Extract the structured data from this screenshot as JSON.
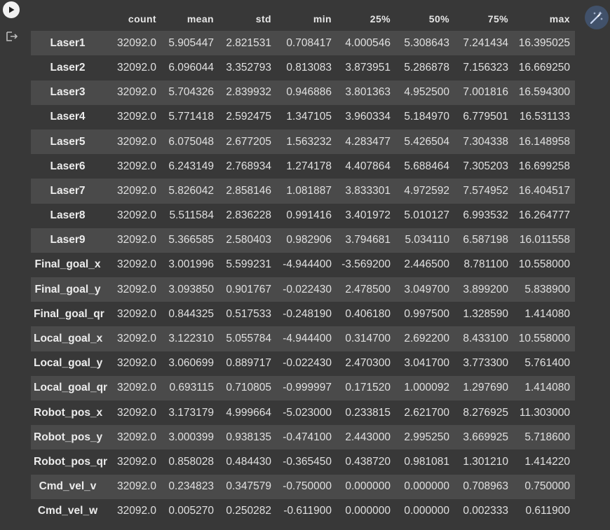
{
  "toolbar": {
    "run_icon": "play-icon",
    "output_icon": "output-redirect-icon",
    "magic_icon": "magic-wand-icon",
    "accent_color": "#41516a"
  },
  "table": {
    "columns": [
      "count",
      "mean",
      "std",
      "min",
      "25%",
      "50%",
      "75%",
      "max"
    ],
    "rows": [
      {
        "label": "Laser1",
        "cells": [
          "32092.0",
          "5.905447",
          "2.821531",
          "0.708417",
          "4.000546",
          "5.308643",
          "7.241434",
          "16.395025"
        ]
      },
      {
        "label": "Laser2",
        "cells": [
          "32092.0",
          "6.096044",
          "3.352793",
          "0.813083",
          "3.873951",
          "5.286878",
          "7.156323",
          "16.669250"
        ]
      },
      {
        "label": "Laser3",
        "cells": [
          "32092.0",
          "5.704326",
          "2.839932",
          "0.946886",
          "3.801363",
          "4.952500",
          "7.001816",
          "16.594300"
        ]
      },
      {
        "label": "Laser4",
        "cells": [
          "32092.0",
          "5.771418",
          "2.592475",
          "1.347105",
          "3.960334",
          "5.184970",
          "6.779501",
          "16.531133"
        ]
      },
      {
        "label": "Laser5",
        "cells": [
          "32092.0",
          "6.075048",
          "2.677205",
          "1.563232",
          "4.283477",
          "5.426504",
          "7.304338",
          "16.148958"
        ]
      },
      {
        "label": "Laser6",
        "cells": [
          "32092.0",
          "6.243149",
          "2.768934",
          "1.274178",
          "4.407864",
          "5.688464",
          "7.305203",
          "16.699258"
        ]
      },
      {
        "label": "Laser7",
        "cells": [
          "32092.0",
          "5.826042",
          "2.858146",
          "1.081887",
          "3.833301",
          "4.972592",
          "7.574952",
          "16.404517"
        ]
      },
      {
        "label": "Laser8",
        "cells": [
          "32092.0",
          "5.511584",
          "2.836228",
          "0.991416",
          "3.401972",
          "5.010127",
          "6.993532",
          "16.264777"
        ]
      },
      {
        "label": "Laser9",
        "cells": [
          "32092.0",
          "5.366585",
          "2.580403",
          "0.982906",
          "3.794681",
          "5.034110",
          "6.587198",
          "16.011558"
        ]
      },
      {
        "label": "Final_goal_x",
        "cells": [
          "32092.0",
          "3.001996",
          "5.599231",
          "-4.944400",
          "-3.569200",
          "2.446500",
          "8.781100",
          "10.558000"
        ]
      },
      {
        "label": "Final_goal_y",
        "cells": [
          "32092.0",
          "3.093850",
          "0.901767",
          "-0.022430",
          "2.478500",
          "3.049700",
          "3.899200",
          "5.838900"
        ]
      },
      {
        "label": "Final_goal_qr",
        "cells": [
          "32092.0",
          "0.844325",
          "0.517533",
          "-0.248190",
          "0.406180",
          "0.997500",
          "1.328590",
          "1.414080"
        ]
      },
      {
        "label": "Local_goal_x",
        "cells": [
          "32092.0",
          "3.122310",
          "5.055784",
          "-4.944400",
          "0.314700",
          "2.692200",
          "8.433100",
          "10.558000"
        ]
      },
      {
        "label": "Local_goal_y",
        "cells": [
          "32092.0",
          "3.060699",
          "0.889717",
          "-0.022430",
          "2.470300",
          "3.041700",
          "3.773300",
          "5.761400"
        ]
      },
      {
        "label": "Local_goal_qr",
        "cells": [
          "32092.0",
          "0.693115",
          "0.710805",
          "-0.999997",
          "0.171520",
          "1.000092",
          "1.297690",
          "1.414080"
        ]
      },
      {
        "label": "Robot_pos_x",
        "cells": [
          "32092.0",
          "3.173179",
          "4.999664",
          "-5.023000",
          "0.233815",
          "2.621700",
          "8.276925",
          "11.303000"
        ]
      },
      {
        "label": "Robot_pos_y",
        "cells": [
          "32092.0",
          "3.000399",
          "0.938135",
          "-0.474100",
          "2.443000",
          "2.995250",
          "3.669925",
          "5.718600"
        ]
      },
      {
        "label": "Robot_pos_qr",
        "cells": [
          "32092.0",
          "0.858028",
          "0.484430",
          "-0.365450",
          "0.438720",
          "0.981081",
          "1.301210",
          "1.414220"
        ]
      },
      {
        "label": "Cmd_vel_v",
        "cells": [
          "32092.0",
          "0.234823",
          "0.347579",
          "-0.750000",
          "0.000000",
          "0.000000",
          "0.708963",
          "0.750000"
        ]
      },
      {
        "label": "Cmd_vel_w",
        "cells": [
          "32092.0",
          "0.005270",
          "0.250282",
          "-0.611900",
          "0.000000",
          "0.000000",
          "0.002333",
          "0.611900"
        ]
      }
    ]
  }
}
